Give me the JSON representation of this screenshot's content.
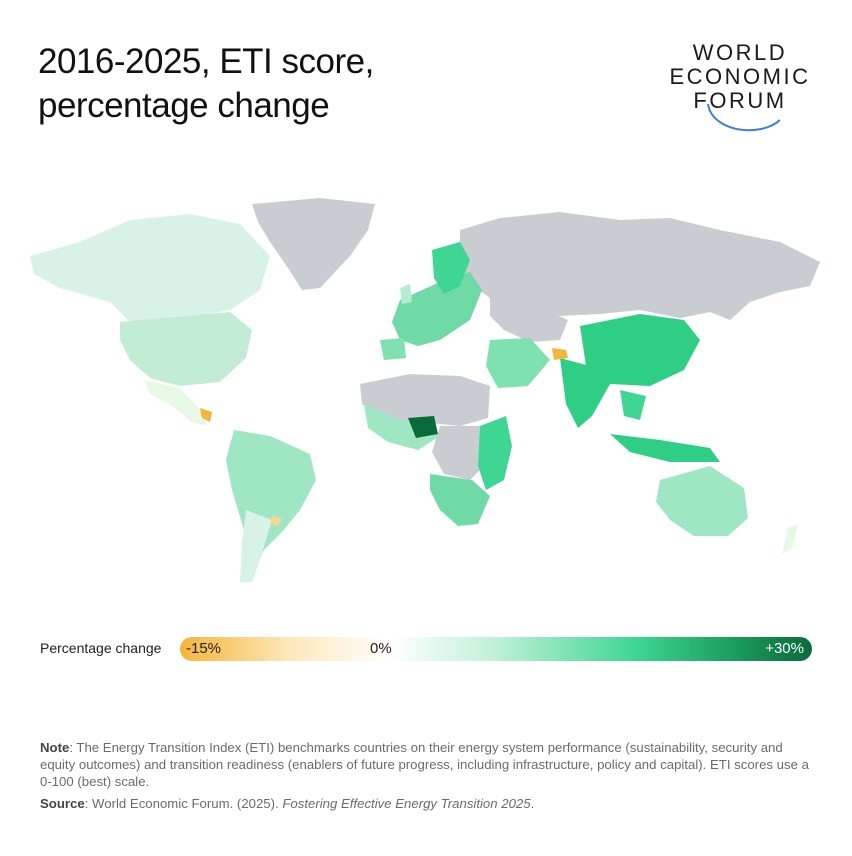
{
  "header": {
    "title_line1": "2016-2025, ETI score,",
    "title_line2": "percentage change"
  },
  "logo": {
    "line1": "WORLD",
    "line2": "ECONOMIC",
    "line3": "FORUM"
  },
  "legend": {
    "label": "Percentage change",
    "min_label": "-15%",
    "mid_label": "0%",
    "max_label": "+30%",
    "min_value": -15,
    "mid_value": 0,
    "max_value": 30,
    "colors": {
      "negative": "#f4b63a",
      "zero": "#ffffff",
      "positive_light": "#bff0d8",
      "positive_mid": "#3fd693",
      "positive_dark": "#0b6a3c",
      "no_data": "#c9cdd2"
    }
  },
  "notes": {
    "note_label": "Note",
    "note_text": ": The Energy Transition Index (ETI) benchmarks countries on their energy system performance (sustainability, security and equity outcomes) and transition readiness (enablers of future progress, including infrastructure, policy and capital). ETI scores use a 0-100 (best) scale.",
    "source_label": "Source",
    "source_text": ": World Economic Forum. (2025). ",
    "source_title": "Fostering Effective Energy Transition 2025",
    "source_end": "."
  }
}
